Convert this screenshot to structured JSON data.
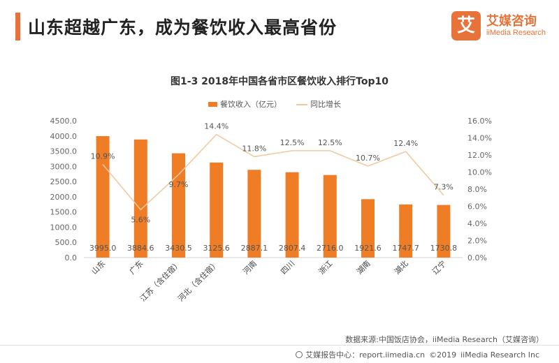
{
  "header": {
    "title": "山东超越广东，成为餐饮收入最高省份",
    "accent_color": "#e8733a"
  },
  "brand": {
    "badge_text": "艾",
    "name_cn": "艾媒咨询",
    "name_en": "iiMedia Research",
    "color": "#e8733a"
  },
  "chart_data": {
    "type": "bar",
    "title": "图1-3 2018年中国各省市区餐饮收入排行Top10",
    "categories": [
      "山东",
      "广东",
      "江苏（含住宿）",
      "河北（含住宿）",
      "河南",
      "四川",
      "浙江",
      "湖南",
      "湖北",
      "辽宁"
    ],
    "series": [
      {
        "name": "餐饮收入（亿元）",
        "type": "bar",
        "axis": "left",
        "color": "#ef7d26",
        "values": [
          3995.0,
          3884.6,
          3430.5,
          3125.6,
          2887.1,
          2807.4,
          2716.0,
          1921.6,
          1747.7,
          1730.8
        ],
        "labels": [
          "3995.0",
          "3884.6",
          "3430.5",
          "3125.6",
          "2887.1",
          "2807.4",
          "2716.0",
          "1921.6",
          "1747.7",
          "1730.8"
        ]
      },
      {
        "name": "同比增长",
        "type": "line",
        "axis": "right",
        "color": "#f2c9a1",
        "values": [
          10.9,
          5.6,
          9.7,
          14.4,
          11.8,
          12.5,
          12.5,
          10.7,
          12.4,
          7.3
        ],
        "labels": [
          "10.9%",
          "5.6%",
          "9.7%",
          "14.4%",
          "11.8%",
          "12.5%",
          "12.5%",
          "10.7%",
          "12.4%",
          "7.3%"
        ]
      }
    ],
    "ylim": [
      0,
      4500
    ],
    "y_ticks": [
      "0.0",
      "500.0",
      "1000.0",
      "1500.0",
      "2000.0",
      "2500.0",
      "3000.0",
      "3500.0",
      "4000.0",
      "4500.0"
    ],
    "y2lim": [
      0,
      16
    ],
    "y2_ticks": [
      "0.0%",
      "2.0%",
      "4.0%",
      "6.0%",
      "8.0%",
      "10.0%",
      "12.0%",
      "14.0%",
      "16.0%"
    ],
    "legend_position": "top-center",
    "grid": false
  },
  "source": "数据来源:中国饭店协会，iiMedia Research（艾媒咨询）",
  "footer": {
    "items": [
      "艾媒报告中心：report.iimedia.cn",
      "©2019",
      "iiMedia Research Inc"
    ]
  }
}
